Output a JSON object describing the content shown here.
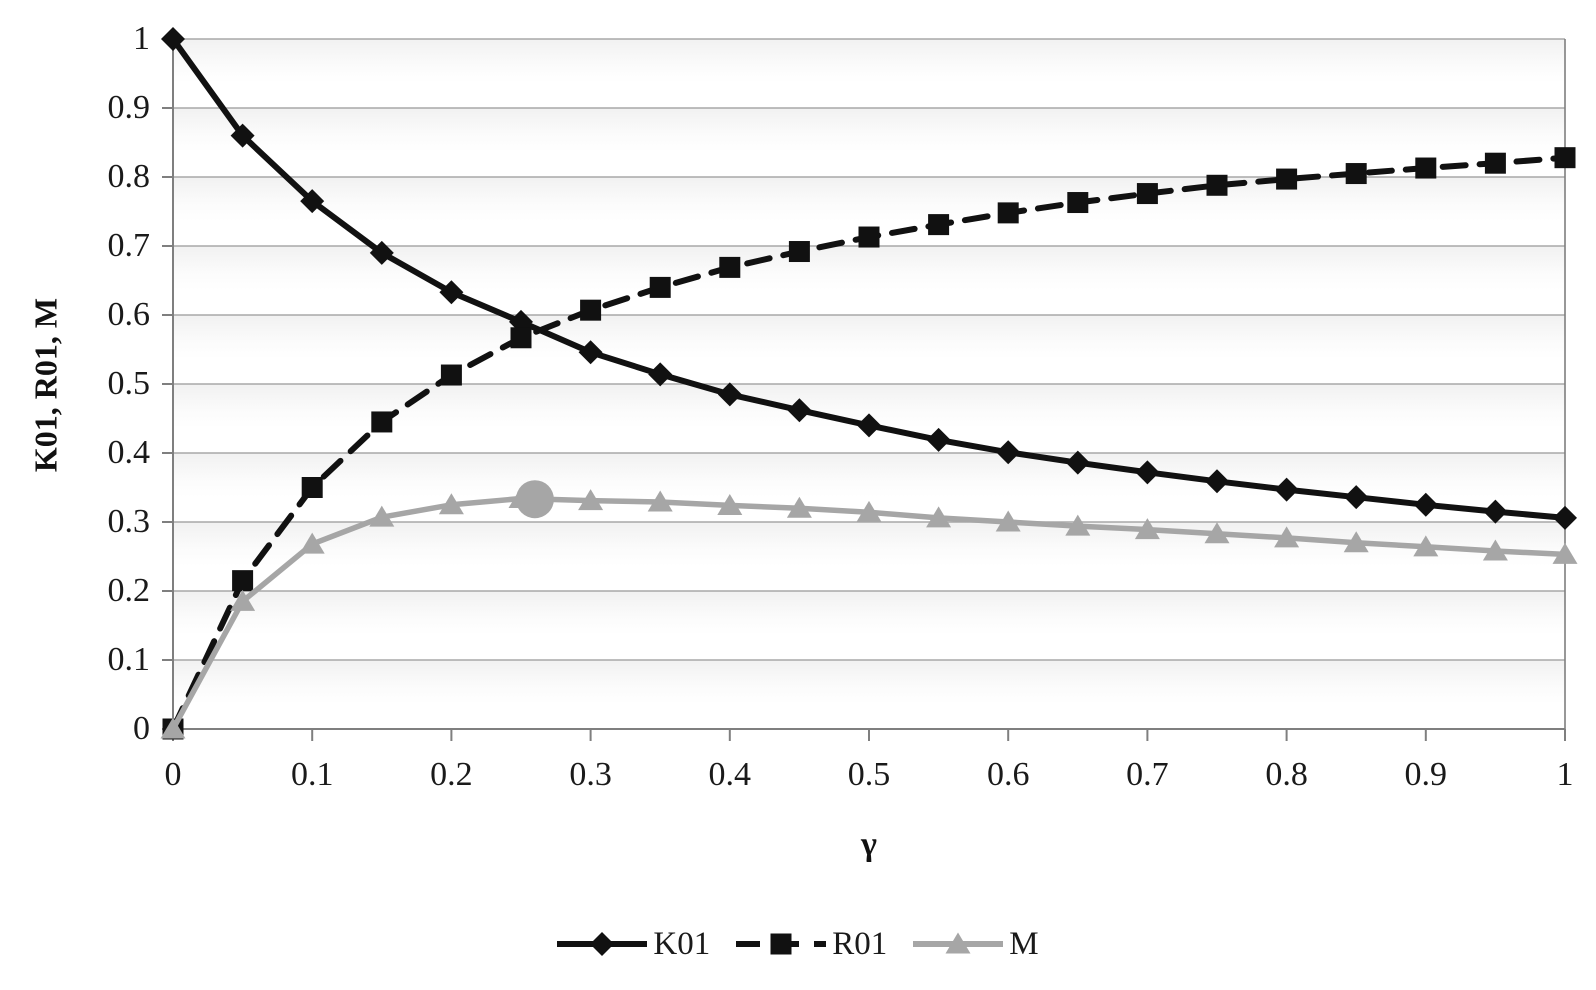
{
  "chart_data": {
    "type": "line",
    "title": "",
    "xlabel": "γ",
    "ylabel": "K01, R01, M",
    "xlim": [
      0,
      1
    ],
    "ylim": [
      0,
      1
    ],
    "x_tick_labels": [
      "0",
      "0.1",
      "0.2",
      "0.3",
      "0.4",
      "0.5",
      "0.6",
      "0.7",
      "0.8",
      "0.9",
      "1"
    ],
    "y_tick_labels": [
      "0",
      "0.1",
      "0.2",
      "0.3",
      "0.4",
      "0.5",
      "0.6",
      "0.7",
      "0.8",
      "0.9",
      "1"
    ],
    "grid": "horizontal gridlines every 0.1",
    "legend_position": "bottom-center",
    "x": [
      0,
      0.05,
      0.1,
      0.15,
      0.2,
      0.25,
      0.3,
      0.35,
      0.4,
      0.45,
      0.5,
      0.55,
      0.6,
      0.65,
      0.7,
      0.75,
      0.8,
      0.85,
      0.9,
      0.95,
      1
    ],
    "series": [
      {
        "name": "K01",
        "color": "#111111",
        "line_style": "solid",
        "marker": "diamond",
        "values": [
          1,
          0.86,
          0.765,
          0.69,
          0.633,
          0.59,
          0.546,
          0.514,
          0.485,
          0.462,
          0.44,
          0.419,
          0.401,
          0.386,
          0.372,
          0.359,
          0.347,
          0.336,
          0.325,
          0.315,
          0.306
        ]
      },
      {
        "name": "R01",
        "color": "#111111",
        "line_style": "dashed",
        "marker": "square",
        "values": [
          0,
          0.215,
          0.35,
          0.445,
          0.513,
          0.567,
          0.607,
          0.64,
          0.669,
          0.692,
          0.713,
          0.731,
          0.748,
          0.763,
          0.776,
          0.788,
          0.797,
          0.805,
          0.813,
          0.82,
          0.828
        ]
      },
      {
        "name": "M",
        "color": "#a6a6a6",
        "line_style": "solid",
        "marker": "triangle",
        "values": [
          0,
          0.185,
          0.268,
          0.307,
          0.325,
          0.334,
          0.331,
          0.329,
          0.324,
          0.32,
          0.314,
          0.306,
          0.3,
          0.294,
          0.289,
          0.283,
          0.277,
          0.27,
          0.264,
          0.258,
          0.253
        ]
      }
    ],
    "highlight_point": {
      "series": "M",
      "x": 0.26,
      "y": 0.333,
      "marker": "large-circle",
      "color": "#a6a6a6"
    },
    "colors": {
      "black_series": "#111111",
      "gray_series": "#a6a6a6",
      "gridline": "#a8a8a8",
      "axis": "#7f7f7f",
      "background": "#ffffff"
    }
  }
}
